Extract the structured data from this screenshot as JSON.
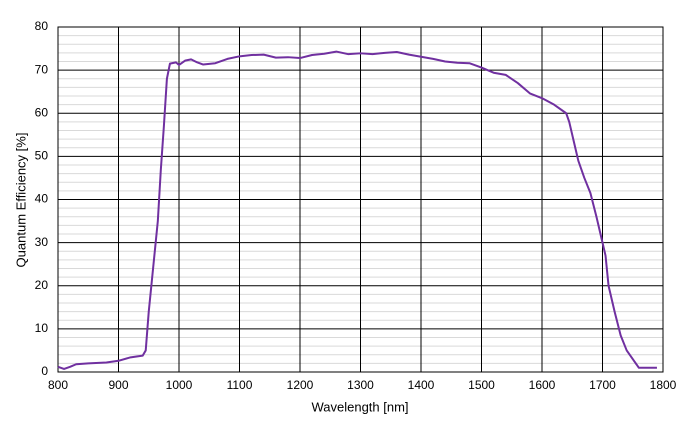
{
  "chart_data": {
    "type": "line",
    "x_label": "Wavelength [nm]",
    "y_label": "Quantum Efficiency [%]",
    "x": [
      800,
      810,
      820,
      830,
      850,
      880,
      900,
      920,
      940,
      945,
      950,
      960,
      965,
      970,
      975,
      980,
      985,
      995,
      1000,
      1010,
      1020,
      1030,
      1040,
      1060,
      1080,
      1100,
      1120,
      1140,
      1160,
      1180,
      1200,
      1220,
      1240,
      1260,
      1280,
      1300,
      1320,
      1340,
      1360,
      1380,
      1400,
      1420,
      1440,
      1460,
      1480,
      1500,
      1520,
      1540,
      1560,
      1580,
      1600,
      1620,
      1640,
      1645,
      1655,
      1660,
      1670,
      1680,
      1690,
      1700,
      1705,
      1710,
      1720,
      1730,
      1740,
      1750,
      1760,
      1770,
      1790
    ],
    "series": [
      {
        "color": "#7030a0",
        "values": [
          1.2,
          0.7,
          1.2,
          1.8,
          2.0,
          2.2,
          2.6,
          3.4,
          3.8,
          5,
          14,
          28,
          35,
          47,
          57,
          68,
          71.5,
          71.8,
          71.2,
          72.2,
          72.5,
          71.8,
          71.3,
          71.6,
          72.6,
          73.2,
          73.5,
          73.6,
          72.9,
          73,
          72.8,
          73.5,
          73.8,
          74.3,
          73.7,
          73.9,
          73.7,
          74,
          74.2,
          73.6,
          73.1,
          72.6,
          72.0,
          71.7,
          71.6,
          70.6,
          69.4,
          68.9,
          67,
          64.6,
          63.5,
          62,
          60,
          58,
          52,
          49,
          45,
          41.5,
          36,
          30,
          27,
          20,
          14,
          8.5,
          5,
          3,
          1,
          1,
          1
        ]
      }
    ],
    "xlim": [
      800,
      1800
    ],
    "xticks": [
      800,
      900,
      1000,
      1100,
      1200,
      1300,
      1400,
      1500,
      1600,
      1700,
      1800
    ],
    "ylim": [
      0,
      80
    ],
    "yticks": [
      0,
      10,
      20,
      30,
      40,
      50,
      60,
      70,
      80
    ],
    "y_minor_ticks": [
      2,
      4,
      6,
      8,
      12,
      14,
      16,
      18,
      22,
      24,
      26,
      28,
      32,
      34,
      36,
      38,
      42,
      44,
      46,
      48,
      52,
      54,
      56,
      58,
      62,
      64,
      66,
      68,
      72,
      74,
      76,
      78
    ],
    "grid": true
  }
}
